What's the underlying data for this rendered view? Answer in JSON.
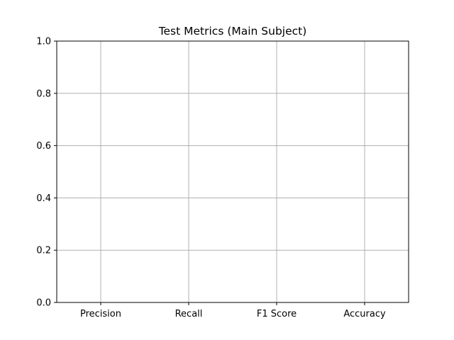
{
  "chart_data": {
    "type": "bar",
    "title": "Test Metrics (Main Subject)",
    "xlabel": "",
    "ylabel": "",
    "categories": [
      "Precision",
      "Recall",
      "F1 Score",
      "Accuracy"
    ],
    "values": [
      null,
      null,
      null,
      null
    ],
    "ylim": [
      0,
      1
    ],
    "yticks": [
      "0.0",
      "0.2",
      "0.4",
      "0.6",
      "0.8",
      "1.0"
    ],
    "grid": true,
    "colors": {
      "grid": "#b0b0b0",
      "axes": "#000000",
      "text": "#000000",
      "background": "#ffffff"
    }
  }
}
